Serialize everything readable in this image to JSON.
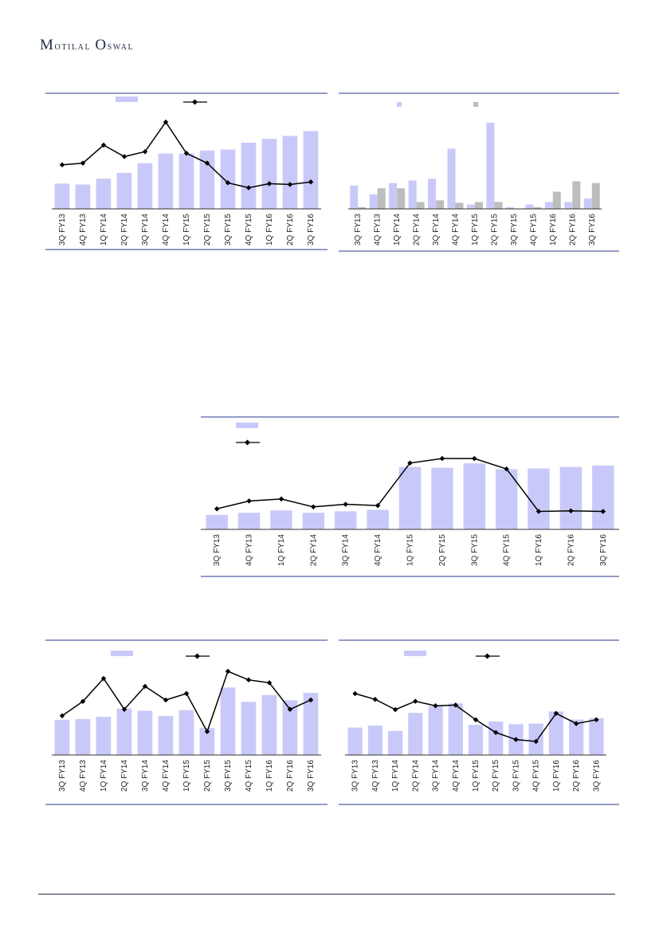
{
  "header": {
    "brand_first": "M",
    "brand_first_rest": "otilal",
    "brand_second": "O",
    "brand_second_rest": "swal"
  },
  "colors": {
    "bar": "#c9c9f9",
    "bar2": "#bdbdbd",
    "line": "#000000",
    "rule": "#2b3a8f",
    "axis": "#333333"
  },
  "chart_data": [
    {
      "id": "chart1",
      "type": "bar",
      "categories": [
        "3Q FY13",
        "4Q FY13",
        "1Q FY14",
        "2Q FY14",
        "3Q FY14",
        "4Q FY14",
        "1Q FY15",
        "2Q FY15",
        "3Q FY15",
        "4Q FY15",
        "1Q FY16",
        "2Q FY16",
        "3Q FY16"
      ],
      "series": [
        {
          "kind": "bar",
          "values": [
            26,
            25,
            31,
            37,
            47,
            57,
            57,
            60,
            61,
            68,
            72,
            75,
            80
          ]
        },
        {
          "kind": "line",
          "values": [
            44,
            46,
            68,
            54,
            60,
            96,
            58,
            46,
            22,
            16,
            21,
            20,
            23
          ]
        }
      ],
      "ylim": [
        0,
        100
      ]
    },
    {
      "id": "chart2",
      "type": "bar",
      "categories": [
        "3Q FY13",
        "4Q FY13",
        "1Q FY14",
        "2Q FY14",
        "3Q FY14",
        "4Q FY14",
        "1Q FY15",
        "2Q FY15",
        "3Q FY15",
        "4Q FY15",
        "1Q FY16",
        "2Q FY16",
        "3Q FY16"
      ],
      "series": [
        {
          "kind": "bar",
          "values": [
            27,
            17,
            30,
            33,
            35,
            70,
            5,
            100,
            2,
            5,
            8,
            8,
            12
          ]
        },
        {
          "kind": "bar2",
          "values": [
            2,
            24,
            24,
            8,
            10,
            7,
            8,
            8,
            0,
            2,
            20,
            32,
            30
          ]
        }
      ],
      "ylim": [
        0,
        100
      ]
    },
    {
      "id": "chart3",
      "type": "bar",
      "categories": [
        "3Q FY13",
        "4Q FY13",
        "1Q FY14",
        "2Q FY14",
        "3Q FY14",
        "4Q FY14",
        "1Q FY15",
        "2Q FY15",
        "3Q FY15",
        "4Q FY15",
        "1Q FY16",
        "2Q FY16",
        "3Q FY16"
      ],
      "series": [
        {
          "kind": "bar",
          "values": [
            20,
            23,
            26,
            23,
            25,
            27,
            86,
            85,
            91,
            83,
            84,
            86,
            88
          ]
        },
        {
          "kind": "line",
          "values": [
            18,
            30,
            33,
            21,
            25,
            23,
            88,
            95,
            95,
            79,
            14,
            15,
            14
          ]
        }
      ],
      "ylim": [
        0,
        100
      ]
    },
    {
      "id": "chart4",
      "type": "bar",
      "categories": [
        "3Q FY13",
        "4Q FY13",
        "1Q FY14",
        "2Q FY14",
        "3Q FY14",
        "4Q FY14",
        "1Q FY15",
        "2Q FY15",
        "3Q FY15",
        "4Q FY15",
        "1Q FY16",
        "2Q FY16",
        "3Q FY16"
      ],
      "series": [
        {
          "kind": "bar",
          "values": [
            47,
            48,
            51,
            62,
            59,
            52,
            60,
            36,
            90,
            71,
            80,
            73,
            83
          ]
        },
        {
          "kind": "line",
          "values": [
            38,
            58,
            90,
            47,
            79,
            60,
            69,
            16,
            100,
            88,
            84,
            47,
            60
          ]
        }
      ],
      "ylim": [
        0,
        100
      ]
    },
    {
      "id": "chart5",
      "type": "bar",
      "categories": [
        "3Q FY13",
        "4Q FY13",
        "1Q FY14",
        "2Q FY14",
        "3Q FY14",
        "4Q FY14",
        "1Q FY15",
        "2Q FY15",
        "3Q FY15",
        "4Q FY15",
        "1Q FY16",
        "2Q FY16",
        "3Q FY16"
      ],
      "series": [
        {
          "kind": "bar",
          "values": [
            41,
            44,
            36,
            63,
            73,
            77,
            45,
            50,
            46,
            47,
            65,
            53,
            55
          ]
        },
        {
          "kind": "line",
          "values": [
            85,
            76,
            60,
            73,
            66,
            67,
            44,
            24,
            13,
            10,
            54,
            38,
            44
          ]
        }
      ],
      "ylim": [
        0,
        100
      ]
    }
  ]
}
